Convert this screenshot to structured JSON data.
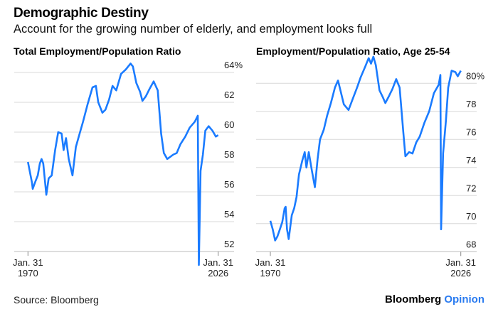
{
  "title": "Demographic Destiny",
  "subtitle": "Account for the growing number of elderly, and employment looks full",
  "source": "Source: Bloomberg",
  "brand": {
    "name": "Bloomberg",
    "suffix": "Opinion"
  },
  "colors": {
    "line": "#1a7bff",
    "grid": "#d8d8d8",
    "brand_accent": "#2a7bf0"
  },
  "chart_data": [
    {
      "type": "line",
      "title": "Total Employment/Population Ratio",
      "xlabel": "",
      "ylabel": "",
      "ylim": [
        52,
        64
      ],
      "xlim": [
        1970,
        2026
      ],
      "yticks": [
        52,
        54,
        56,
        58,
        60,
        62,
        64
      ],
      "ytick_labels": [
        "52",
        "54",
        "56",
        "58",
        "60",
        "62",
        "64%"
      ],
      "xtick_labels": [
        {
          "line1": "Jan. 31",
          "line2": "1970"
        },
        {
          "line1": "Jan. 31",
          "line2": "2026"
        }
      ],
      "grid": true,
      "series": [
        {
          "name": "Total Employment/Population Ratio",
          "x": [
            1970.0,
            1971.2,
            1971.4,
            1972.2,
            1972.9,
            1973.5,
            1974.0,
            1974.5,
            1975.4,
            1976.1,
            1977.0,
            1978.0,
            1978.9,
            1979.9,
            1980.5,
            1981.2,
            1982.0,
            1983.1,
            1984.1,
            1985.2,
            1986.2,
            1987.6,
            1989.0,
            1990.0,
            1990.7,
            1991.9,
            1992.8,
            1993.9,
            1994.9,
            1996.0,
            1997.4,
            1998.8,
            2000.2,
            2000.9,
            2001.9,
            2003.0,
            2003.7,
            2004.7,
            2005.8,
            2007.0,
            2008.2,
            2009.2,
            2010.0,
            2011.0,
            2012.8,
            2013.8,
            2014.9,
            2016.3,
            2017.6,
            2019.1,
            2020.0,
            2020.3,
            2020.8,
            2021.5,
            2022.2,
            2023.2,
            2024.3,
            2025.3,
            2026.0
          ],
          "y": [
            58.0,
            56.6,
            56.2,
            56.7,
            57.1,
            57.9,
            58.2,
            57.9,
            55.8,
            56.9,
            57.1,
            58.8,
            60.0,
            59.9,
            58.8,
            59.6,
            58.2,
            57.1,
            59.0,
            59.9,
            60.7,
            61.9,
            63.0,
            63.1,
            62.0,
            61.3,
            61.5,
            62.2,
            63.1,
            62.8,
            63.9,
            64.2,
            64.6,
            64.4,
            63.3,
            62.7,
            62.1,
            62.4,
            62.9,
            63.4,
            62.8,
            59.9,
            58.6,
            58.2,
            58.5,
            58.6,
            59.2,
            59.7,
            60.3,
            60.7,
            61.1,
            51.1,
            57.4,
            58.5,
            60.1,
            60.4,
            60.1,
            59.7,
            59.8
          ]
        }
      ]
    },
    {
      "type": "line",
      "title": "Employment/Population Ratio, Age 25-54",
      "xlabel": "",
      "ylabel": "",
      "ylim": [
        68,
        82
      ],
      "xlim": [
        1970,
        2026
      ],
      "yticks": [
        68,
        70,
        72,
        74,
        76,
        78,
        80
      ],
      "ytick_labels": [
        "68",
        "70",
        "72",
        "74",
        "76",
        "78",
        "80%"
      ],
      "xtick_labels": [
        {
          "line1": "Jan. 31",
          "line2": "1970"
        },
        {
          "line1": "Jan. 31",
          "line2": "2026"
        }
      ],
      "grid": true,
      "series": [
        {
          "name": "Employment/Population Ratio, Age 25-54",
          "x": [
            1970.0,
            1970.7,
            1971.4,
            1972.1,
            1972.8,
            1973.5,
            1974.2,
            1974.5,
            1974.9,
            1975.4,
            1976.3,
            1977.0,
            1977.7,
            1978.4,
            1979.4,
            1980.1,
            1980.6,
            1981.3,
            1982.2,
            1983.1,
            1983.9,
            1984.6,
            1985.7,
            1986.7,
            1987.8,
            1989.0,
            1989.9,
            1990.6,
            1991.6,
            1993.0,
            1994.4,
            1995.5,
            1996.5,
            1997.9,
            1998.9,
            1999.6,
            2000.3,
            2001.0,
            2002.1,
            2003.1,
            2003.8,
            2004.9,
            2005.9,
            2007.0,
            2008.0,
            2009.1,
            2009.7,
            2010.8,
            2011.8,
            2012.9,
            2013.9,
            2015.3,
            2016.7,
            2018.1,
            2019.5,
            2020.0,
            2020.2,
            2020.8,
            2021.6,
            2022.3,
            2023.3,
            2024.4,
            2025.1,
            2026.0
          ],
          "y": [
            70.2,
            69.6,
            68.8,
            69.1,
            69.6,
            70.1,
            71.1,
            71.2,
            69.6,
            68.9,
            70.6,
            71.1,
            71.9,
            73.5,
            74.5,
            75.1,
            74.0,
            75.1,
            73.8,
            72.6,
            74.6,
            76.0,
            76.7,
            77.7,
            78.6,
            79.7,
            80.2,
            79.5,
            78.5,
            78.1,
            79.0,
            79.7,
            80.4,
            81.2,
            81.8,
            81.4,
            81.9,
            81.3,
            79.5,
            79.0,
            78.6,
            79.1,
            79.6,
            80.3,
            79.7,
            76.5,
            74.8,
            75.1,
            75.0,
            75.8,
            76.2,
            77.2,
            78.0,
            79.3,
            79.9,
            80.6,
            69.6,
            75.0,
            77.3,
            79.7,
            80.9,
            80.8,
            80.5,
            80.9
          ]
        }
      ]
    }
  ]
}
